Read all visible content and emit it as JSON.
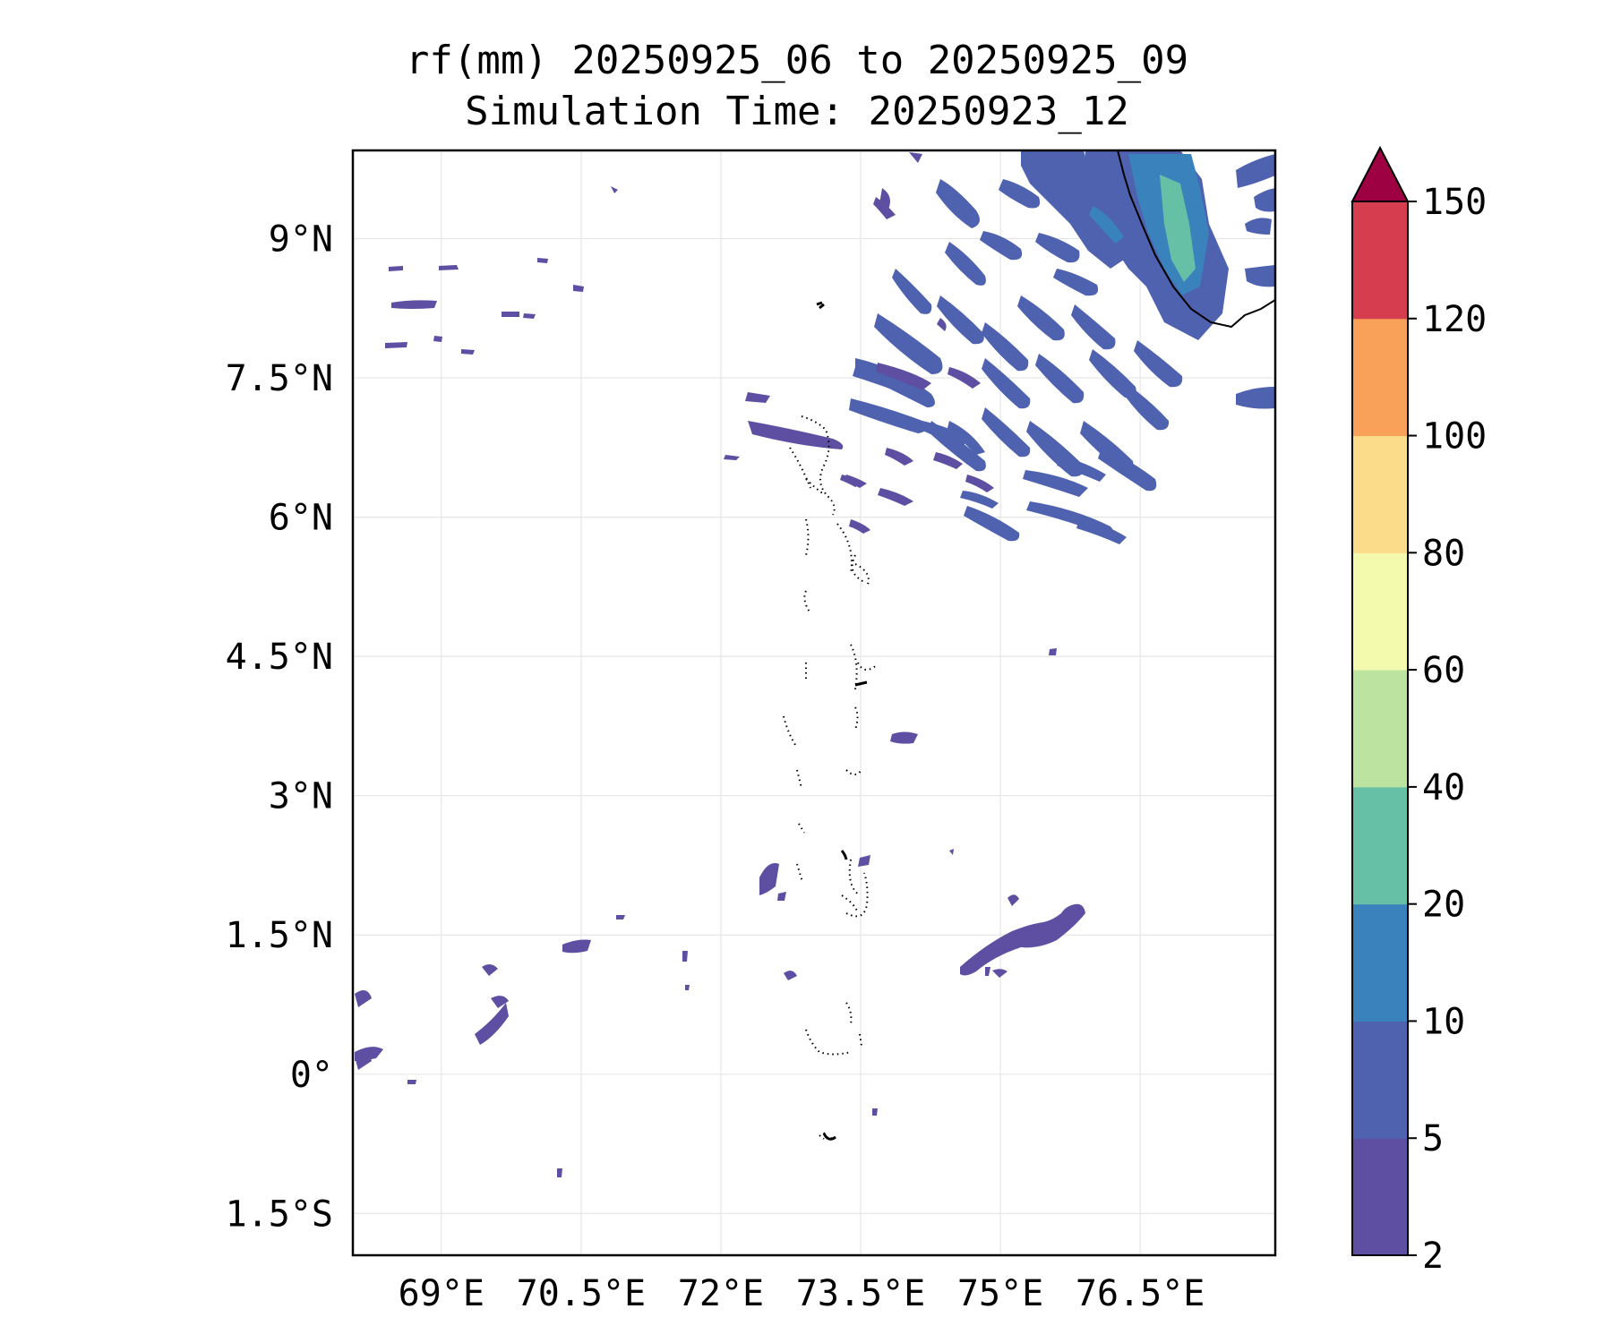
{
  "title": {
    "line1": "rf(mm) 20250925_06 to 20250925_09",
    "line2": "Simulation Time: 20250923_12"
  },
  "map": {
    "lon_range": [
      68.05,
      77.95
    ],
    "lat_range": [
      -1.95,
      9.95
    ],
    "lon_ticks": [
      69,
      70.5,
      72,
      73.5,
      75,
      76.5
    ],
    "lon_labels": [
      "69°E",
      "70.5°E",
      "72°E",
      "73.5°E",
      "75°E",
      "76.5°E"
    ],
    "lat_ticks": [
      9,
      7.5,
      6,
      4.5,
      3,
      1.5,
      0,
      -1.5
    ],
    "lat_labels": [
      "9°N",
      "7.5°N",
      "6°N",
      "4.5°N",
      "3°N",
      "1.5°N",
      "0°",
      "1.5°S"
    ],
    "gridlines": true
  },
  "colorbar": {
    "levels": [
      2,
      5,
      10,
      20,
      40,
      60,
      80,
      100,
      120,
      150
    ],
    "labels": [
      "2",
      "5",
      "10",
      "20",
      "40",
      "60",
      "80",
      "100",
      "120",
      "150"
    ],
    "colors": [
      "#5e4fa2",
      "#4f62b0",
      "#3a82bb",
      "#65c0a6",
      "#bde3a0",
      "#f3f9ad",
      "#fbdc8a",
      "#f9a059",
      "#d63d4e"
    ],
    "extend_color": "#9e0142",
    "extend": "max"
  },
  "colors": {
    "light": "#5e4fa2",
    "moderate": "#4f62b0",
    "heavy": "#65c0a6",
    "coast": "#000000"
  }
}
